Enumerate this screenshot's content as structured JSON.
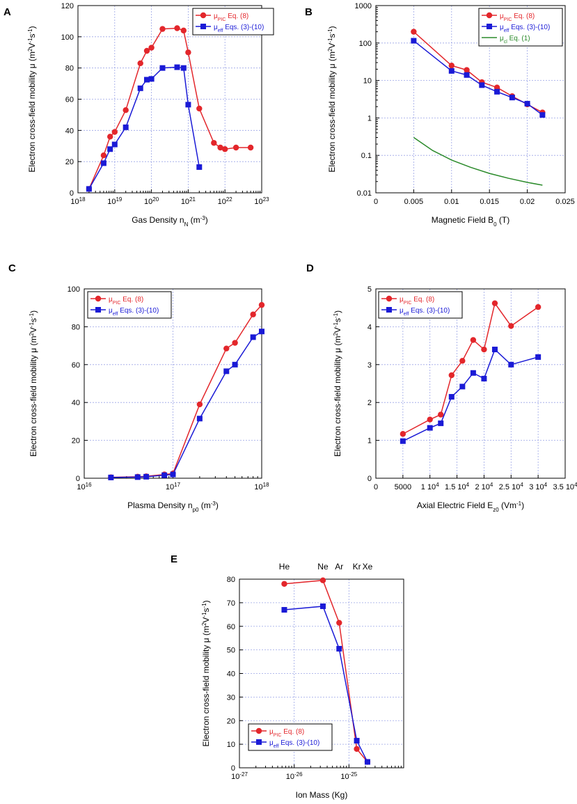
{
  "figure": {
    "panel_labels": [
      "A",
      "B",
      "C",
      "D",
      "E"
    ]
  },
  "colors": {
    "pic": "#e3262b",
    "eff": "#1a1ad6",
    "cl": "#2a8a2a",
    "grid": "#9aa4e6",
    "axis": "#000000"
  },
  "chart_data": [
    {
      "panel": "A",
      "type": "line",
      "xlabel": "Gas Density n",
      "xlabel_sub": "N",
      "xlabel_unit": " (m",
      "xlabel_unit_sup": "-3",
      "xlabel_tail": ")",
      "ylabel": "Electron cross-field mobility μ (m²V⁻¹s⁻¹)",
      "xscale": "log",
      "yscale": "linear",
      "xlim": [
        1e+18,
        1e+23
      ],
      "ylim": [
        0,
        120
      ],
      "xticks": [
        1e+18,
        1e+19,
        1e+20,
        1e+21,
        1e+22,
        1e+23
      ],
      "xtick_base": [
        "10",
        "10",
        "10",
        "10",
        "10",
        "10"
      ],
      "xtick_exp": [
        "18",
        "19",
        "20",
        "21",
        "22",
        "23"
      ],
      "yticks": [
        0,
        20,
        40,
        60,
        80,
        100,
        120
      ],
      "ytick_labels": [
        "0",
        "20",
        "40",
        "60",
        "80",
        "100",
        "120"
      ],
      "legend": [
        {
          "sym": "μ",
          "sub": "PIC",
          "text": " Eq. (8)",
          "color": "pic",
          "marker": "circle"
        },
        {
          "sym": "μ",
          "sub": "eff",
          "text": " Eqs. (3)-(10)",
          "color": "eff",
          "marker": "square"
        }
      ],
      "series": [
        {
          "name": "μ_PIC Eq. (8)",
          "color": "pic",
          "marker": "circle",
          "x": [
            2e+18,
            5e+18,
            7.5e+18,
            1e+19,
            2e+19,
            5e+19,
            7.5e+19,
            1e+20,
            2e+20,
            5e+20,
            7.5e+20,
            1e+21,
            2e+21,
            5e+21,
            7.5e+21,
            1e+22,
            2e+22,
            5e+22
          ],
          "y": [
            2.5,
            24,
            36,
            39,
            53,
            83,
            91,
            93,
            105,
            105.5,
            104,
            90,
            54,
            32,
            29,
            28,
            29,
            29
          ]
        },
        {
          "name": "μ_eff Eqs. (3)-(10)",
          "color": "eff",
          "marker": "square",
          "x": [
            2e+18,
            5e+18,
            7.5e+18,
            1e+19,
            2e+19,
            5e+19,
            7.5e+19,
            1e+20,
            2e+20,
            5e+20,
            7.5e+20,
            1e+21,
            2e+21
          ],
          "y": [
            2.5,
            19,
            28,
            31,
            42,
            67,
            72.5,
            73,
            80,
            80.5,
            80,
            56.5,
            16.5
          ]
        }
      ]
    },
    {
      "panel": "B",
      "type": "line",
      "xlabel": "Magnetic Field B",
      "xlabel_sub": "0",
      "xlabel_unit": " (T)",
      "xlabel_unit_sup": "",
      "xlabel_tail": "",
      "ylabel": "Electron cross-field mobility μ (m²V⁻¹s⁻¹)",
      "xscale": "linear",
      "yscale": "log",
      "xlim": [
        0,
        0.025
      ],
      "ylim": [
        0.01,
        1000
      ],
      "xticks": [
        0,
        0.005,
        0.01,
        0.015,
        0.02,
        0.025
      ],
      "xtick_labels": [
        "0",
        "0.005",
        "0.01",
        "0.015",
        "0.02",
        "0.025"
      ],
      "yticks": [
        0.01,
        0.1,
        1,
        10,
        100,
        1000
      ],
      "ytick_labels": [
        "0.01",
        "0.1",
        "1",
        "10",
        "100",
        "1000"
      ],
      "legend": [
        {
          "sym": "μ",
          "sub": "PIC",
          "text": " Eq. (8)",
          "color": "pic",
          "marker": "circle"
        },
        {
          "sym": "μ",
          "sub": "eff",
          "text": " Eqs. (3)-(10)",
          "color": "eff",
          "marker": "square"
        },
        {
          "sym": "μ",
          "sub": "cl",
          "text": " Eq. (1)",
          "color": "cl",
          "marker": "none"
        }
      ],
      "series": [
        {
          "name": "μ_PIC Eq. (8)",
          "color": "pic",
          "marker": "circle",
          "x": [
            0.005,
            0.01,
            0.012,
            0.014,
            0.016,
            0.018,
            0.02,
            0.022
          ],
          "y": [
            200,
            25,
            19,
            9,
            6.5,
            3.8,
            2.3,
            1.4
          ]
        },
        {
          "name": "μ_eff Eqs. (3)-(10)",
          "color": "eff",
          "marker": "square",
          "x": [
            0.005,
            0.01,
            0.012,
            0.014,
            0.016,
            0.018,
            0.02,
            0.022
          ],
          "y": [
            115,
            18,
            14,
            7.5,
            5,
            3.5,
            2.4,
            1.2
          ]
        },
        {
          "name": "μ_cl Eq. (1)",
          "color": "cl",
          "marker": "none",
          "x": [
            0.005,
            0.0075,
            0.01,
            0.0125,
            0.015,
            0.0175,
            0.02,
            0.022
          ],
          "y": [
            0.3,
            0.135,
            0.075,
            0.048,
            0.033,
            0.0245,
            0.019,
            0.016
          ]
        }
      ]
    },
    {
      "panel": "C",
      "type": "line",
      "xlabel": "Plasma Density n",
      "xlabel_sub": "p0",
      "xlabel_unit": " (m",
      "xlabel_unit_sup": "-3",
      "xlabel_tail": ")",
      "ylabel": "Electron cross-field mobility μ (m²V⁻¹s⁻¹)",
      "xscale": "log",
      "yscale": "linear",
      "xlim": [
        1e+16,
        1e+18
      ],
      "ylim": [
        0,
        100
      ],
      "xticks": [
        1e+16,
        1e+17,
        1e+18
      ],
      "xtick_base": [
        "10",
        "10",
        "10"
      ],
      "xtick_exp": [
        "16",
        "17",
        "18"
      ],
      "yticks": [
        0,
        20,
        40,
        60,
        80,
        100
      ],
      "ytick_labels": [
        "0",
        "20",
        "40",
        "60",
        "80",
        "100"
      ],
      "legend": [
        {
          "sym": "μ",
          "sub": "PIC",
          "text": " Eq. (8)",
          "color": "pic",
          "marker": "circle"
        },
        {
          "sym": "μ",
          "sub": "eff",
          "text": " Eqs. (3)-(10)",
          "color": "eff",
          "marker": "square"
        }
      ],
      "series": [
        {
          "name": "μ_PIC Eq. (8)",
          "color": "pic",
          "marker": "circle",
          "x": [
            2e+16,
            4e+16,
            5e+16,
            8e+16,
            1e+17,
            2e+17,
            4e+17,
            5e+17,
            8e+17,
            1e+18
          ],
          "y": [
            0.5,
            0.8,
            1.0,
            2.0,
            2.5,
            39,
            68.5,
            71.5,
            86.5,
            91.5
          ]
        },
        {
          "name": "μ_eff Eqs. (3)-(10)",
          "color": "eff",
          "marker": "square",
          "x": [
            2e+16,
            4e+16,
            5e+16,
            8e+16,
            1e+17,
            2e+17,
            4e+17,
            5e+17,
            8e+17,
            1e+18
          ],
          "y": [
            0.4,
            0.6,
            0.8,
            1.6,
            2.0,
            31.5,
            56.5,
            60,
            74.5,
            77.5
          ]
        }
      ]
    },
    {
      "panel": "D",
      "type": "line",
      "xlabel": "Axial Electric Field E",
      "xlabel_sub": "z0",
      "xlabel_unit": " (Vm",
      "xlabel_unit_sup": "-1",
      "xlabel_tail": ")",
      "ylabel": "Electron cross-field mobility μ (m²V⁻¹s⁻¹)",
      "xscale": "linear",
      "yscale": "linear",
      "xlim": [
        0,
        35000
      ],
      "ylim": [
        0,
        5
      ],
      "xticks": [
        0,
        5000,
        10000,
        15000,
        20000,
        25000,
        30000,
        35000
      ],
      "xtick_labels": [
        "0",
        "5000",
        "1 10",
        "1.5 10",
        "2 10",
        "2.5 10",
        "3 10",
        "3.5 10"
      ],
      "xtick_sups": [
        "",
        "",
        "4",
        "4",
        "4",
        "4",
        "4",
        "4"
      ],
      "yticks": [
        0,
        1,
        2,
        3,
        4,
        5
      ],
      "ytick_labels": [
        "0",
        "1",
        "2",
        "3",
        "4",
        "5"
      ],
      "legend": [
        {
          "sym": "μ",
          "sub": "PIC",
          "text": " Eq. (8)",
          "color": "pic",
          "marker": "circle"
        },
        {
          "sym": "μ",
          "sub": "eff",
          "text": " Eqs. (3)-(10)",
          "color": "eff",
          "marker": "square"
        }
      ],
      "series": [
        {
          "name": "μ_PIC Eq. (8)",
          "color": "pic",
          "marker": "circle",
          "x": [
            5000,
            10000,
            12000,
            14000,
            16000,
            18000,
            20000,
            22000,
            25000,
            30000
          ],
          "y": [
            1.17,
            1.55,
            1.68,
            2.72,
            3.1,
            3.65,
            3.4,
            4.62,
            4.02,
            4.52
          ]
        },
        {
          "name": "μ_eff Eqs. (3)-(10)",
          "color": "eff",
          "marker": "square",
          "x": [
            5000,
            10000,
            12000,
            14000,
            16000,
            18000,
            20000,
            22000,
            25000,
            30000
          ],
          "y": [
            0.98,
            1.33,
            1.45,
            2.15,
            2.42,
            2.78,
            2.63,
            3.4,
            3.0,
            3.2
          ]
        }
      ]
    },
    {
      "panel": "E",
      "type": "line",
      "xlabel": "Ion Mass (Kg)",
      "xlabel_sub": "",
      "xlabel_unit": "",
      "xlabel_unit_sup": "",
      "xlabel_tail": "",
      "ylabel": "Electron cross-field mobility μ (m²V⁻¹s⁻¹)",
      "xscale": "log",
      "yscale": "linear",
      "xlim": [
        1e-27,
        1e-24
      ],
      "ylim": [
        0,
        80
      ],
      "xticks": [
        1e-27,
        1e-26,
        1e-25
      ],
      "xtick_base": [
        "10",
        "10",
        "10"
      ],
      "xtick_exp": [
        "-27",
        "-26",
        "-25"
      ],
      "yticks": [
        0,
        10,
        20,
        30,
        40,
        50,
        60,
        70,
        80
      ],
      "ytick_labels": [
        "0",
        "10",
        "20",
        "30",
        "40",
        "50",
        "60",
        "70",
        "80"
      ],
      "top_labels": [
        {
          "text": "He",
          "x": 6.6e-27
        },
        {
          "text": "Ne",
          "x": 3.35e-26
        },
        {
          "text": "Ar",
          "x": 6.63e-26
        },
        {
          "text": "Kr",
          "x": 1.39e-25
        },
        {
          "text": "Xe",
          "x": 2.18e-25
        }
      ],
      "legend": [
        {
          "sym": "μ",
          "sub": "PIC",
          "text": " Eq. (8)",
          "color": "pic",
          "marker": "circle"
        },
        {
          "sym": "μ",
          "sub": "eff",
          "text": " Eqs. (3)-(10)",
          "color": "eff",
          "marker": "square"
        }
      ],
      "series": [
        {
          "name": "μ_PIC Eq. (8)",
          "color": "pic",
          "marker": "circle",
          "x": [
            6.6e-27,
            3.35e-26,
            6.63e-26,
            1.39e-25,
            2.18e-25
          ],
          "y": [
            78,
            79.5,
            61.5,
            8,
            2.5
          ]
        },
        {
          "name": "μ_eff Eqs. (3)-(10)",
          "color": "eff",
          "marker": "square",
          "x": [
            6.6e-27,
            3.35e-26,
            6.63e-26,
            1.39e-25,
            2.18e-25
          ],
          "y": [
            67,
            68.5,
            50.5,
            11.5,
            2.5
          ]
        }
      ]
    }
  ]
}
